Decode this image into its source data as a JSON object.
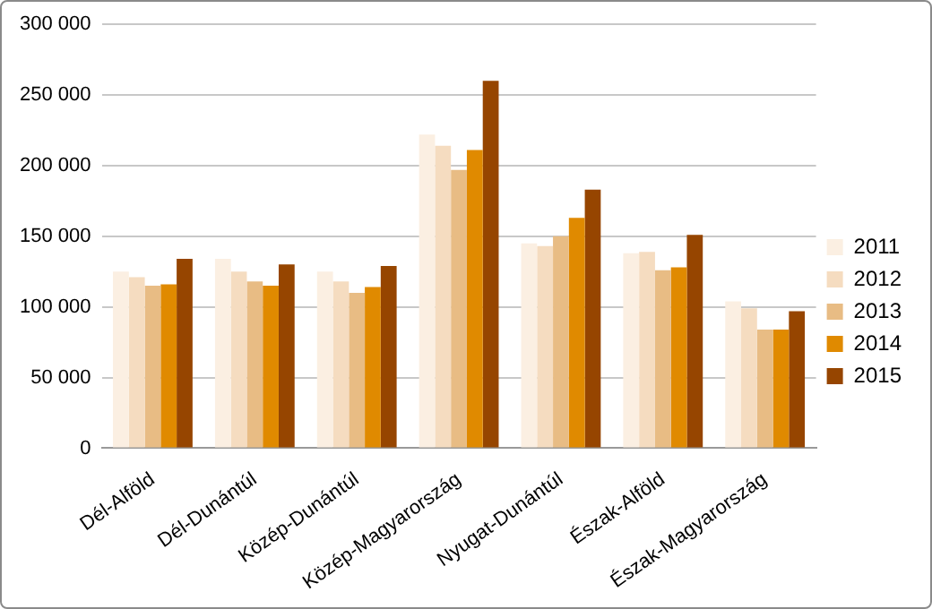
{
  "chart_data": {
    "type": "bar",
    "categories": [
      "Dél-Alföld",
      "Dél-Dunántúl",
      "Közép-Dunántúl",
      "Közép-Magyarország",
      "Nyugat-Dunántúl",
      "Észak-Alföld",
      "Észak-Magyarország"
    ],
    "series": [
      {
        "name": "2011",
        "color": "#fbefe2",
        "values": [
          125000,
          134000,
          125000,
          222000,
          145000,
          138000,
          104000
        ]
      },
      {
        "name": "2012",
        "color": "#f5dcc0",
        "values": [
          121000,
          125000,
          118000,
          214000,
          143000,
          139000,
          99000
        ]
      },
      {
        "name": "2013",
        "color": "#e8bc84",
        "values": [
          115000,
          118000,
          110000,
          197000,
          150000,
          126000,
          84000
        ]
      },
      {
        "name": "2014",
        "color": "#e08a00",
        "values": [
          116000,
          115000,
          114000,
          211000,
          163000,
          128000,
          84000
        ]
      },
      {
        "name": "2015",
        "color": "#964500",
        "values": [
          134000,
          130000,
          129000,
          260000,
          183000,
          151000,
          97000
        ]
      }
    ],
    "ylim": [
      0,
      300000
    ],
    "yticks": [
      {
        "value": 0,
        "label": "0"
      },
      {
        "value": 50000,
        "label": "50 000"
      },
      {
        "value": 100000,
        "label": "100 000"
      },
      {
        "value": 150000,
        "label": "150 000"
      },
      {
        "value": 200000,
        "label": "200 000"
      },
      {
        "value": 250000,
        "label": "250 000"
      },
      {
        "value": 300000,
        "label": "300 000"
      }
    ],
    "grid": "y",
    "legend": "right"
  }
}
